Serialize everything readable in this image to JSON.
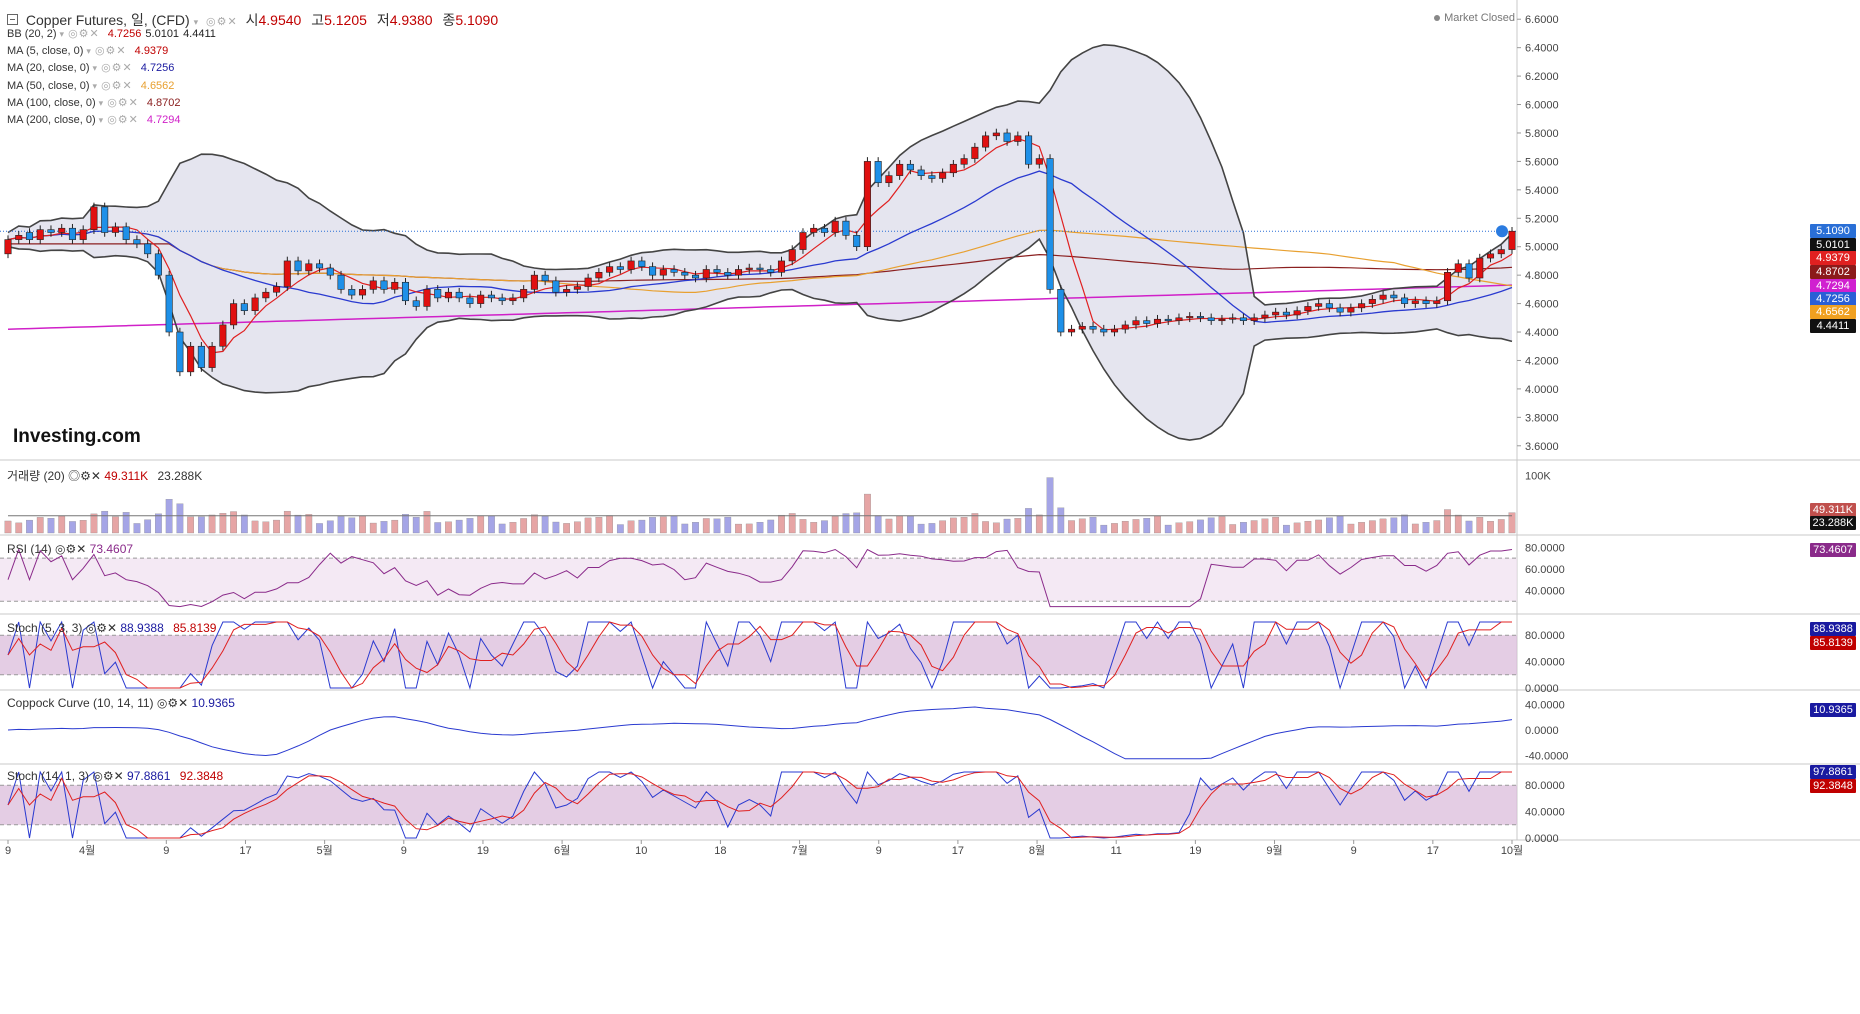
{
  "header": {
    "collapse_icon": "minus-square-icon",
    "symbol": "Copper Futures, 일, (CFD)",
    "ohlc": [
      {
        "label": "시",
        "value": "4.9540"
      },
      {
        "label": "고",
        "value": "5.1205"
      },
      {
        "label": "저",
        "value": "4.9380"
      },
      {
        "label": "종",
        "value": "5.1090"
      }
    ],
    "market_status": "Market Closed",
    "logo": "Investing.com"
  },
  "legend": [
    {
      "name": "BB (20, 2)",
      "values": [
        "4.7256",
        "5.0101",
        "4.4411"
      ],
      "color": "#c00000"
    },
    {
      "name": "MA (5, close, 0)",
      "values": [
        "4.9379"
      ],
      "color": "#c00000"
    },
    {
      "name": "MA (20, close, 0)",
      "values": [
        "4.7256"
      ],
      "color": "#1a1aa0"
    },
    {
      "name": "MA (50, close, 0)",
      "values": [
        "4.6562"
      ],
      "color": "#e8a030"
    },
    {
      "name": "MA (100, close, 0)",
      "values": [
        "4.8702"
      ],
      "color": "#8b2020"
    },
    {
      "name": "MA (200, close, 0)",
      "values": [
        "4.7294"
      ],
      "color": "#d020c8"
    }
  ],
  "price_tags": [
    {
      "value": "5.1090",
      "color": "#2a6fd6"
    },
    {
      "value": "5.0101",
      "color": "#111111"
    },
    {
      "value": "4.9379",
      "color": "#e02020"
    },
    {
      "value": "4.8702",
      "color": "#8b1a1a"
    },
    {
      "value": "4.7294",
      "color": "#d020d0"
    },
    {
      "value": "4.7256",
      "color": "#2a5fd6"
    },
    {
      "value": "4.6562",
      "color": "#f0a020"
    },
    {
      "value": "4.4411",
      "color": "#111111"
    }
  ],
  "panes": {
    "volume": {
      "title": "거래량 (20)",
      "values": [
        "49.311K",
        "23.288K"
      ],
      "axis": [
        "100K"
      ],
      "tags": [
        "49.311K",
        "23.288K"
      ]
    },
    "rsi": {
      "title": "RSI (14)",
      "values": [
        "73.4607"
      ],
      "axis": [
        "80.0000",
        "60.0000",
        "40.0000"
      ],
      "tag": "73.4607"
    },
    "stoch1": {
      "title": "Stoch (5, 3, 3)",
      "values": [
        "88.9388",
        "85.8139"
      ],
      "axis": [
        "80.0000",
        "40.0000",
        "0.0000"
      ],
      "tags": [
        "88.9388",
        "85.8139"
      ]
    },
    "coppock": {
      "title": "Coppock Curve (10, 14, 11)",
      "values": [
        "10.9365"
      ],
      "axis": [
        "40.0000",
        "0.0000",
        "-40.0000"
      ],
      "tag": "10.9365"
    },
    "stoch2": {
      "title": "Stoch (14, 1, 3)",
      "values": [
        "97.8861",
        "92.3848"
      ],
      "axis": [
        "80.0000",
        "40.0000",
        "0.0000"
      ],
      "tags": [
        "97.8861",
        "92.3848"
      ]
    }
  },
  "chart_data": {
    "type": "candlestick",
    "title": "Copper Futures, 일, (CFD)",
    "y_axis_ticks": [
      "6.6000",
      "6.4000",
      "6.2000",
      "6.0000",
      "5.8000",
      "5.6000",
      "5.4000",
      "5.2000",
      "5.0000",
      "4.8000",
      "4.6000",
      "4.4000",
      "4.2000",
      "4.0000",
      "3.8000",
      "3.6000"
    ],
    "ylim": [
      3.5,
      6.7
    ],
    "x_tick_labels": [
      "9",
      "4월",
      "9",
      "17",
      "5월",
      "9",
      "19",
      "6월",
      "10",
      "18",
      "7월",
      "9",
      "17",
      "8월",
      "11",
      "19",
      "9월",
      "9",
      "17",
      "10월"
    ],
    "last_price": 5.109,
    "candles": [
      [
        4.95,
        5.05
      ],
      [
        5.05,
        5.08
      ],
      [
        5.1,
        5.05
      ],
      [
        5.05,
        5.12
      ],
      [
        5.12,
        5.1
      ],
      [
        5.1,
        5.13
      ],
      [
        5.13,
        5.05
      ],
      [
        5.05,
        5.12
      ],
      [
        5.12,
        5.28
      ],
      [
        5.28,
        5.1
      ],
      [
        5.1,
        5.14
      ],
      [
        5.14,
        5.05
      ],
      [
        5.05,
        5.02
      ],
      [
        5.02,
        4.95
      ],
      [
        4.95,
        4.8
      ],
      [
        4.8,
        4.4
      ],
      [
        4.4,
        4.12
      ],
      [
        4.12,
        4.3
      ],
      [
        4.3,
        4.15
      ],
      [
        4.15,
        4.3
      ],
      [
        4.3,
        4.45
      ],
      [
        4.45,
        4.6
      ],
      [
        4.6,
        4.55
      ],
      [
        4.55,
        4.64
      ],
      [
        4.64,
        4.68
      ],
      [
        4.68,
        4.72
      ],
      [
        4.72,
        4.9
      ],
      [
        4.9,
        4.83
      ],
      [
        4.83,
        4.88
      ],
      [
        4.88,
        4.85
      ],
      [
        4.85,
        4.8
      ],
      [
        4.8,
        4.7
      ],
      [
        4.7,
        4.66
      ],
      [
        4.66,
        4.7
      ],
      [
        4.7,
        4.76
      ],
      [
        4.76,
        4.7
      ],
      [
        4.7,
        4.75
      ],
      [
        4.75,
        4.62
      ],
      [
        4.62,
        4.58
      ],
      [
        4.58,
        4.7
      ],
      [
        4.7,
        4.64
      ],
      [
        4.64,
        4.68
      ],
      [
        4.68,
        4.64
      ],
      [
        4.64,
        4.6
      ],
      [
        4.6,
        4.66
      ],
      [
        4.66,
        4.64
      ],
      [
        4.64,
        4.62
      ],
      [
        4.62,
        4.64
      ],
      [
        4.64,
        4.7
      ],
      [
        4.7,
        4.8
      ],
      [
        4.8,
        4.76
      ],
      [
        4.76,
        4.68
      ],
      [
        4.68,
        4.7
      ],
      [
        4.7,
        4.72
      ],
      [
        4.72,
        4.78
      ],
      [
        4.78,
        4.82
      ],
      [
        4.82,
        4.86
      ],
      [
        4.86,
        4.84
      ],
      [
        4.84,
        4.9
      ],
      [
        4.9,
        4.86
      ],
      [
        4.86,
        4.8
      ],
      [
        4.8,
        4.84
      ],
      [
        4.84,
        4.82
      ],
      [
        4.82,
        4.8
      ],
      [
        4.8,
        4.78
      ],
      [
        4.78,
        4.84
      ],
      [
        4.84,
        4.82
      ],
      [
        4.82,
        4.8
      ],
      [
        4.8,
        4.84
      ],
      [
        4.84,
        4.85
      ],
      [
        4.85,
        4.84
      ],
      [
        4.84,
        4.82
      ],
      [
        4.82,
        4.9
      ],
      [
        4.9,
        4.98
      ],
      [
        4.98,
        5.1
      ],
      [
        5.1,
        5.13
      ],
      [
        5.13,
        5.1
      ],
      [
        5.1,
        5.18
      ],
      [
        5.18,
        5.08
      ],
      [
        5.08,
        5.0
      ],
      [
        5.0,
        5.6
      ],
      [
        5.6,
        5.45
      ],
      [
        5.45,
        5.5
      ],
      [
        5.5,
        5.58
      ],
      [
        5.58,
        5.54
      ],
      [
        5.54,
        5.5
      ],
      [
        5.5,
        5.48
      ],
      [
        5.48,
        5.52
      ],
      [
        5.52,
        5.58
      ],
      [
        5.58,
        5.62
      ],
      [
        5.62,
        5.7
      ],
      [
        5.7,
        5.78
      ],
      [
        5.78,
        5.8
      ],
      [
        5.8,
        5.74
      ],
      [
        5.74,
        5.78
      ],
      [
        5.78,
        5.58
      ],
      [
        5.58,
        5.62
      ],
      [
        5.62,
        4.7
      ],
      [
        4.7,
        4.4
      ],
      [
        4.4,
        4.42
      ],
      [
        4.42,
        4.44
      ],
      [
        4.44,
        4.42
      ],
      [
        4.42,
        4.4
      ],
      [
        4.4,
        4.42
      ],
      [
        4.42,
        4.45
      ],
      [
        4.45,
        4.48
      ],
      [
        4.48,
        4.46
      ],
      [
        4.46,
        4.49
      ],
      [
        4.49,
        4.48
      ],
      [
        4.48,
        4.5
      ],
      [
        4.5,
        4.51
      ],
      [
        4.51,
        4.5
      ],
      [
        4.5,
        4.48
      ],
      [
        4.48,
        4.49
      ],
      [
        4.49,
        4.5
      ],
      [
        4.5,
        4.48
      ],
      [
        4.48,
        4.5
      ],
      [
        4.5,
        4.52
      ],
      [
        4.52,
        4.54
      ],
      [
        4.54,
        4.52
      ],
      [
        4.52,
        4.55
      ],
      [
        4.55,
        4.58
      ],
      [
        4.58,
        4.6
      ],
      [
        4.6,
        4.57
      ],
      [
        4.57,
        4.54
      ],
      [
        4.54,
        4.57
      ],
      [
        4.57,
        4.6
      ],
      [
        4.6,
        4.63
      ],
      [
        4.63,
        4.66
      ],
      [
        4.66,
        4.64
      ],
      [
        4.64,
        4.6
      ],
      [
        4.6,
        4.62
      ],
      [
        4.62,
        4.6
      ],
      [
        4.6,
        4.62
      ],
      [
        4.62,
        4.82
      ],
      [
        4.82,
        4.88
      ],
      [
        4.88,
        4.78
      ],
      [
        4.78,
        4.92
      ],
      [
        4.92,
        4.95
      ],
      [
        4.95,
        4.98
      ],
      [
        4.98,
        5.109
      ]
    ]
  }
}
